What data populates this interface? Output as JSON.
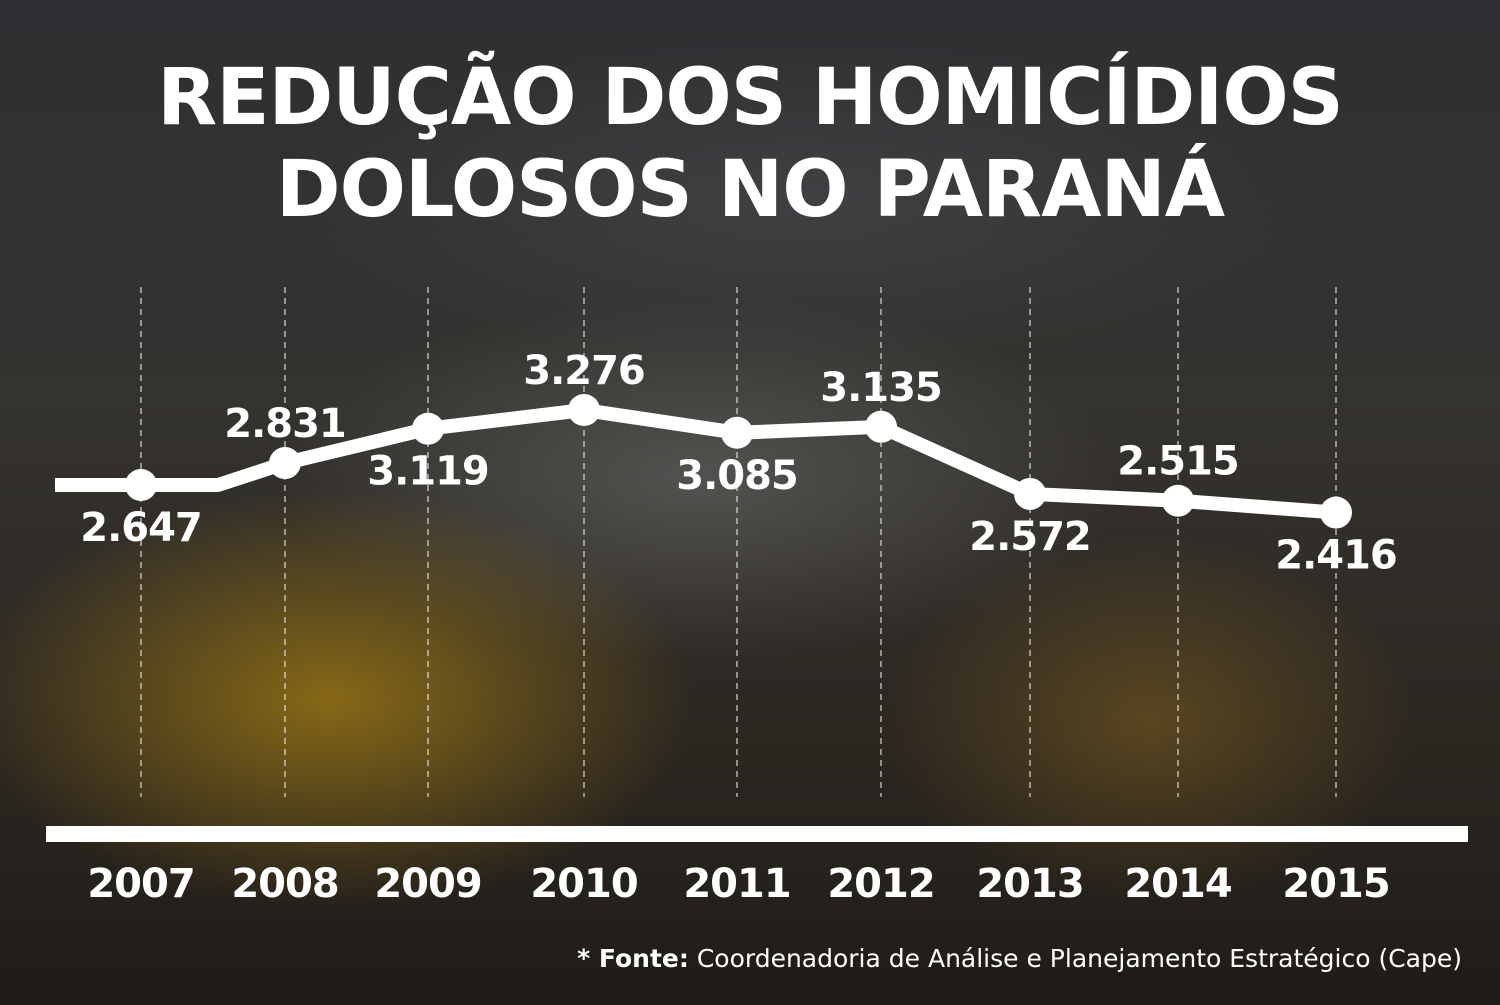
{
  "title_lines": [
    "REDUÇÃO DOS HOMICÍDIOS",
    "DOLOSOS NO PARANÁ"
  ],
  "source": {
    "prefix": "* Fonte:",
    "text": "Coordenadoria de Análise e Planejamento Estratégico (Cape)"
  },
  "colors": {
    "line": "#ffffff",
    "text": "#ffffff",
    "gridline": "#ffffff"
  },
  "chart_data": {
    "type": "line",
    "title": "REDUÇÃO DOS HOMICÍDIOS DOLOSOS NO PARANÁ",
    "xlabel": "",
    "ylabel": "",
    "categories": [
      "2007",
      "2008",
      "2009",
      "2010",
      "2011",
      "2012",
      "2013",
      "2014",
      "2015"
    ],
    "values": [
      2647,
      2831,
      3119,
      3276,
      3085,
      3135,
      2572,
      2515,
      2416
    ],
    "data_labels": [
      "2.647",
      "2.831",
      "3.119",
      "3.276",
      "3.085",
      "3.135",
      "2.572",
      "2.515",
      "2.416"
    ],
    "label_position": [
      "below",
      "above",
      "below",
      "above",
      "below",
      "above",
      "below",
      "above",
      "below"
    ],
    "grid": "vertical dashed",
    "legend": "none"
  }
}
